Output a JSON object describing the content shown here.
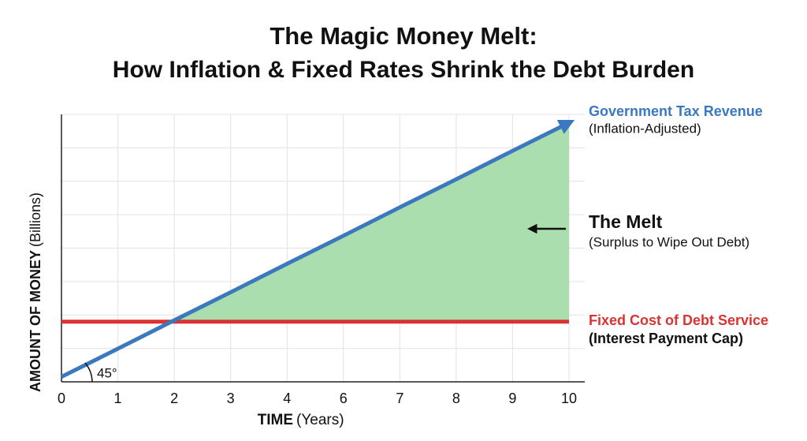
{
  "chart_data": {
    "type": "line",
    "title": "The Magic Money Melt:",
    "subtitle": "How Inflation & Fixed Rates Shrink the Debt Burden",
    "x_label": "TIME",
    "x_label_unit": "(Years)",
    "y_label": "AMOUNT OF MONEY",
    "y_label_unit": "(Billions)",
    "categories": [
      "0",
      "1",
      "2",
      "3",
      "4",
      "6",
      "7",
      "8",
      "9",
      "10"
    ],
    "ylim": [
      0,
      8
    ],
    "grid": true,
    "series": [
      {
        "name": "Government Tax Revenue",
        "note": "(Inflation-Adjusted)",
        "color": "#3a78c0",
        "values": [
          0.15,
          0.99,
          1.84,
          2.68,
          3.53,
          4.37,
          5.22,
          6.06,
          6.91,
          7.75
        ]
      },
      {
        "name": "Fixed Cost of Debt Service",
        "note": "(Interest Payment Cap)",
        "color": "#d93333",
        "values": [
          1.8,
          1.8,
          1.8,
          1.8,
          1.8,
          1.8,
          1.8,
          1.8,
          1.8,
          1.8
        ]
      }
    ],
    "area_color": "#a6dcaa",
    "annotations": {
      "melt": "The Melt",
      "melt_note": "(Surplus to Wipe Out Debt)",
      "angle": "45°"
    }
  }
}
